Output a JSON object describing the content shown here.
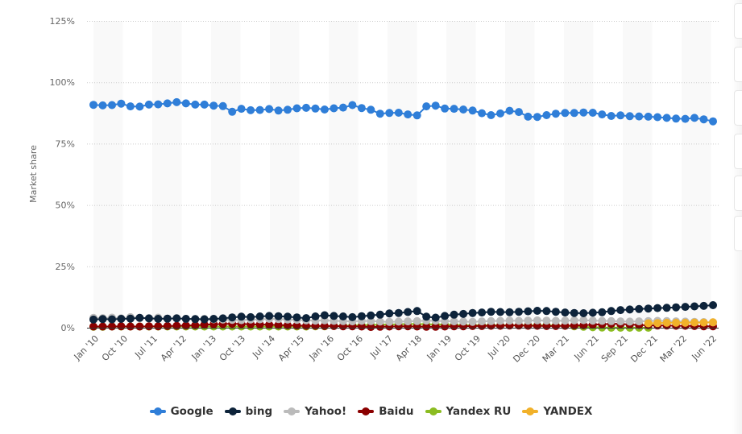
{
  "chart_data": {
    "type": "line",
    "title": "",
    "xlabel": "",
    "ylabel": "Market share",
    "ylim": [
      0,
      125
    ],
    "yticks": [
      "0%",
      "25%",
      "50%",
      "75%",
      "100%",
      "125%"
    ],
    "x_tick_labels": [
      "Jan '10",
      "Oct '10",
      "Jul '11",
      "Apr '12",
      "Jan '13",
      "Oct '13",
      "Jul '14",
      "Apr '15",
      "Jan '16",
      "Oct '16",
      "Jul '17",
      "Apr '18",
      "Jan '19",
      "Oct '19",
      "Jul '20",
      "Dec '20",
      "Mar '21",
      "Jun '21",
      "Sep '21",
      "Dec '21",
      "Mar '22",
      "Jun '22"
    ],
    "grid": true,
    "legend_position": "bottom",
    "series": [
      {
        "name": "Google",
        "color": "#2f7ed8",
        "values": [
          90.8,
          90.6,
          90.7,
          91.3,
          90.2,
          90.1,
          90.9,
          91.0,
          91.4,
          91.9,
          91.4,
          90.9,
          90.9,
          90.5,
          90.3,
          88.0,
          89.2,
          88.6,
          88.7,
          89.1,
          88.5,
          88.8,
          89.4,
          89.6,
          89.3,
          88.9,
          89.4,
          89.7,
          90.7,
          89.5,
          88.8,
          87.2,
          87.5,
          87.6,
          86.9,
          86.5,
          90.2,
          90.5,
          89.3,
          89.2,
          88.9,
          88.5,
          87.4,
          86.6,
          87.3,
          88.4,
          87.9,
          86.0,
          85.9,
          86.6,
          87.2,
          87.5,
          87.5,
          87.7,
          87.6,
          86.9,
          86.3,
          86.5,
          86.2,
          86.1,
          86.0,
          85.8,
          85.5,
          85.2,
          85.1,
          85.5,
          84.9,
          84.1
        ]
      },
      {
        "name": "bing",
        "color": "#0d233a",
        "values": [
          3.3,
          3.5,
          3.4,
          3.6,
          3.7,
          4.0,
          3.8,
          3.6,
          3.7,
          3.8,
          3.6,
          3.5,
          3.4,
          3.6,
          3.8,
          4.2,
          4.5,
          4.3,
          4.6,
          4.8,
          4.7,
          4.5,
          4.2,
          3.9,
          4.6,
          5.1,
          4.8,
          4.6,
          4.3,
          4.7,
          5.0,
          5.3,
          5.8,
          6.0,
          6.4,
          6.8,
          4.5,
          4.1,
          4.8,
          5.3,
          5.6,
          6.0,
          6.2,
          6.5,
          6.4,
          6.3,
          6.5,
          6.7,
          6.9,
          6.8,
          6.5,
          6.2,
          6.0,
          5.9,
          6.1,
          6.3,
          6.8,
          7.2,
          7.4,
          7.6,
          7.8,
          8.0,
          8.1,
          8.3,
          8.5,
          8.7,
          8.9,
          9.2
        ]
      },
      {
        "name": "Yahoo!",
        "color": "#bbbbbb",
        "values": [
          4.0,
          3.9,
          4.1,
          3.8,
          4.3,
          4.0,
          3.8,
          4.1,
          3.7,
          3.9,
          3.6,
          3.5,
          3.6,
          3.4,
          3.3,
          3.2,
          3.1,
          3.3,
          3.4,
          3.6,
          3.5,
          3.3,
          3.2,
          3.0,
          2.9,
          3.0,
          2.8,
          2.7,
          2.6,
          2.8,
          2.7,
          2.5,
          2.4,
          2.5,
          2.6,
          2.7,
          2.9,
          2.8,
          2.7,
          2.6,
          2.5,
          2.4,
          2.6,
          2.7,
          2.8,
          2.9,
          2.8,
          2.9,
          3.0,
          2.9,
          2.8,
          2.9,
          3.0,
          3.1,
          2.9,
          2.8,
          2.7,
          2.6,
          2.5,
          2.6,
          2.7,
          2.8,
          2.7,
          2.6,
          2.5,
          2.4,
          2.3,
          2.2
        ]
      },
      {
        "name": "Baidu",
        "color": "#8b0000",
        "values": [
          0.5,
          0.5,
          0.5,
          0.6,
          0.5,
          0.5,
          0.6,
          0.6,
          0.7,
          0.8,
          0.9,
          1.0,
          1.2,
          1.4,
          1.5,
          1.6,
          1.5,
          1.4,
          1.3,
          1.2,
          1.1,
          1.0,
          0.9,
          0.8,
          0.8,
          0.7,
          0.7,
          0.6,
          0.6,
          0.5,
          0.3,
          0.4,
          0.5,
          0.6,
          0.6,
          0.5,
          0.4,
          0.4,
          0.5,
          0.6,
          0.6,
          0.7,
          0.7,
          0.8,
          0.8,
          0.9,
          0.9,
          0.8,
          0.8,
          0.7,
          0.7,
          0.8,
          0.9,
          1.0,
          1.2,
          1.4,
          1.6,
          1.5,
          1.3,
          1.1,
          1.0,
          0.9,
          0.9,
          0.8,
          0.8,
          0.7,
          0.6,
          0.6
        ]
      },
      {
        "name": "Yandex RU",
        "color": "#8bbc21",
        "values": [
          0.4,
          0.4,
          0.5,
          0.5,
          0.5,
          0.5,
          0.5,
          0.5,
          0.5,
          0.5,
          0.5,
          0.5,
          0.5,
          0.5,
          0.5,
          0.5,
          0.5,
          0.5,
          0.5,
          0.5,
          0.5,
          0.5,
          0.5,
          0.5,
          0.6,
          0.6,
          0.7,
          0.8,
          0.9,
          1.0,
          1.1,
          1.2,
          1.3,
          1.4,
          1.5,
          1.5,
          1.4,
          1.3,
          1.2,
          1.1,
          1.0,
          1.0,
          1.0,
          1.0,
          1.0,
          1.0,
          1.0,
          1.0,
          1.0,
          1.0,
          0.9,
          0.8,
          0.6,
          0.4,
          0.2,
          0.1,
          0.0,
          0.0,
          0.0,
          0.0,
          0.0,
          null,
          null,
          null,
          null,
          null,
          null,
          null
        ]
      },
      {
        "name": "YANDEX",
        "color": "#f1b12a",
        "values": [
          null,
          null,
          null,
          null,
          null,
          null,
          null,
          null,
          null,
          null,
          null,
          null,
          null,
          null,
          null,
          null,
          null,
          null,
          null,
          null,
          null,
          null,
          null,
          null,
          null,
          null,
          null,
          null,
          null,
          null,
          null,
          null,
          null,
          null,
          null,
          null,
          null,
          null,
          null,
          null,
          null,
          null,
          null,
          null,
          null,
          null,
          null,
          null,
          null,
          null,
          null,
          null,
          null,
          null,
          null,
          null,
          null,
          null,
          null,
          null,
          1.8,
          1.9,
          2.0,
          2.0,
          2.0,
          2.1,
          2.1,
          2.2
        ]
      }
    ]
  },
  "axis": {
    "y_title": "Market share"
  },
  "legend": [
    {
      "label": "Google",
      "color": "#2f7ed8"
    },
    {
      "label": "bing",
      "color": "#0d233a"
    },
    {
      "label": "Yahoo!",
      "color": "#bbbbbb"
    },
    {
      "label": "Baidu",
      "color": "#8b0000"
    },
    {
      "label": "Yandex RU",
      "color": "#8bbc21"
    },
    {
      "label": "YANDEX",
      "color": "#f1b12a"
    }
  ]
}
